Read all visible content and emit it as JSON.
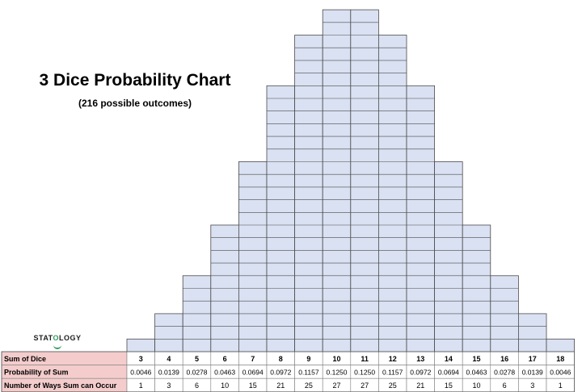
{
  "title": "3 Dice Probability Chart",
  "subtitle": "(216 possible outcomes)",
  "logo": {
    "pre": "STAT",
    "o": "O",
    "post": "LOGY"
  },
  "chart_data": {
    "type": "bar",
    "title": "3 Dice Probability Chart",
    "subtitle": "(216 possible outcomes)",
    "categories": [
      "3",
      "4",
      "5",
      "6",
      "7",
      "8",
      "9",
      "10",
      "11",
      "12",
      "13",
      "14",
      "15",
      "16",
      "17",
      "18"
    ],
    "values": [
      1,
      3,
      6,
      10,
      15,
      21,
      25,
      27,
      27,
      25,
      21,
      15,
      10,
      6,
      3,
      1
    ],
    "ylim": [
      0,
      27
    ],
    "table": {
      "row_labels": [
        "Sum of Dice",
        "Probability of Sum",
        "Number of Ways Sum can Occur"
      ],
      "probabilities": [
        "0.0046",
        "0.0139",
        "0.0278",
        "0.0463",
        "0.0694",
        "0.0972",
        "0.1157",
        "0.1250",
        "0.1250",
        "0.1157",
        "0.0972",
        "0.0694",
        "0.0463",
        "0.0278",
        "0.0139",
        "0.0046"
      ],
      "ways": [
        "1",
        "3",
        "6",
        "10",
        "15",
        "21",
        "25",
        "27",
        "27",
        "25",
        "21",
        "15",
        "10",
        "6",
        "3",
        "1"
      ]
    },
    "colors": {
      "cell_fill": "#d9e1f2",
      "cell_border": "#4a4a4a",
      "label_fill": "#f4cccc",
      "border": "#7f7f7f"
    }
  }
}
